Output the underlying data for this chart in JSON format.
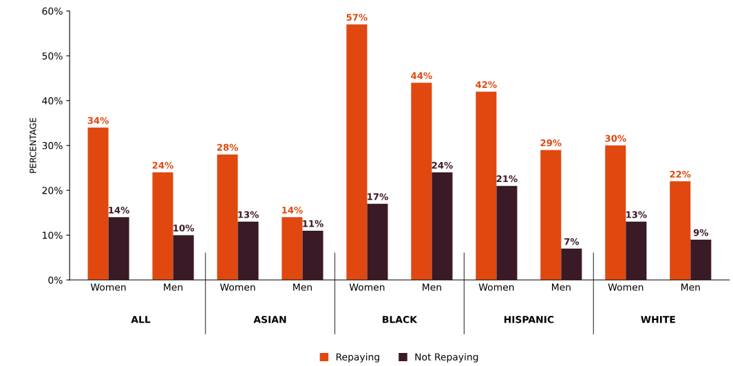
{
  "chart_data": {
    "type": "bar",
    "ylabel": "PERCENTAGE",
    "categories": [
      "Women",
      "Men",
      "Women",
      "Men",
      "Women",
      "Men",
      "Women",
      "Men",
      "Women",
      "Men"
    ],
    "series": [
      {
        "name": "Repaying",
        "color": "#e0480f",
        "values": [
          34,
          24,
          28,
          14,
          57,
          44,
          42,
          29,
          30,
          22
        ]
      },
      {
        "name": "Not Repaying",
        "color": "#3a1a26",
        "values": [
          14,
          10,
          13,
          11,
          17,
          24,
          21,
          7,
          13,
          9
        ]
      }
    ],
    "value_labels": [
      [
        "34%",
        "24%",
        "28%",
        "14%",
        "57%",
        "44%",
        "42%",
        "29%",
        "30%",
        "22%"
      ],
      [
        "14%",
        "10%",
        "13%",
        "11%",
        "17%",
        "24%",
        "21%",
        "7%",
        "13%",
        "9%"
      ]
    ],
    "annotations": [
      "ALL",
      "ASIAN",
      "BLACK",
      "HISPANIC",
      "WHITE"
    ],
    "ylim": [
      0,
      60
    ],
    "yticks": [
      {
        "value": 0,
        "label": "0%"
      },
      {
        "value": 10,
        "label": "10%"
      },
      {
        "value": 20,
        "label": "20%"
      },
      {
        "value": 30,
        "label": "30%"
      },
      {
        "value": 40,
        "label": "40%"
      },
      {
        "value": 50,
        "label": "50%"
      },
      {
        "value": 60,
        "label": "60%"
      }
    ],
    "grid": false,
    "legend": "bottom"
  }
}
